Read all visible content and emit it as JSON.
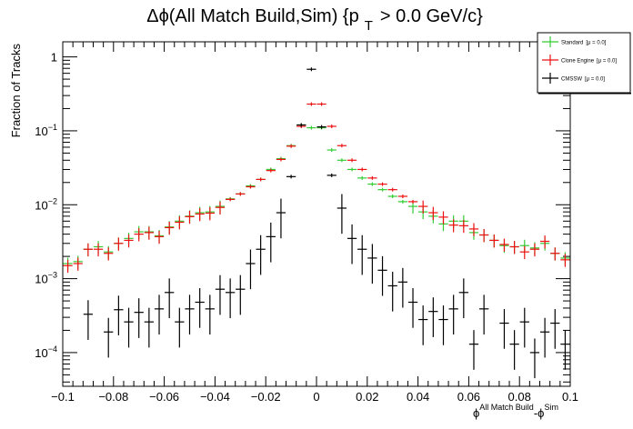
{
  "chart_data": {
    "type": "scatter",
    "title_parts": {
      "main": "Δϕ(All Match Build,Sim) {p",
      "sub": "T",
      "tail": "> 0.0 GeV/c}"
    },
    "ylabel": "Fraction of Tracks",
    "xlabel_parts": {
      "phi_left": "ϕ",
      "sup_left": "All Match Build",
      "dash": "-ϕ",
      "sup_right": "Sim"
    },
    "xlim": [
      -0.1,
      0.1
    ],
    "ylim": [
      3.5e-05,
      1.6
    ],
    "yscale": "log",
    "x_ticks": [
      -0.1,
      -0.08,
      -0.06,
      -0.04,
      -0.02,
      0,
      0.02,
      0.04,
      0.06,
      0.08,
      0.1
    ],
    "x_tick_labels": [
      "−0.1",
      "−0.08",
      "−0.06",
      "−0.04",
      "−0.02",
      "0",
      "0.02",
      "0.04",
      "0.06",
      "0.08",
      "0.1"
    ],
    "y_ticks": [
      {
        "value": 0.0001,
        "base": "10",
        "exp": "−4"
      },
      {
        "value": 0.001,
        "base": "10",
        "exp": "−3"
      },
      {
        "value": 0.01,
        "base": "10",
        "exp": "−2"
      },
      {
        "value": 0.1,
        "base": "10",
        "exp": "−1"
      },
      {
        "value": 1,
        "base": "1",
        "exp": ""
      }
    ],
    "bin_width": 0.004,
    "legend": {
      "position": "top-right",
      "entries": [
        {
          "label": "Standard",
          "stat": "[μ = 0.0]"
        },
        {
          "label": "Clone Engine",
          "stat": "[μ = 0.0]"
        },
        {
          "label": "CMSSW",
          "stat": "[μ = 0.0]"
        }
      ]
    },
    "series": [
      {
        "name": "Standard",
        "color": "#33cc33",
        "x": [
          -0.098,
          -0.094,
          -0.09,
          -0.086,
          -0.082,
          -0.078,
          -0.074,
          -0.07,
          -0.066,
          -0.062,
          -0.058,
          -0.054,
          -0.05,
          -0.046,
          -0.042,
          -0.038,
          -0.034,
          -0.03,
          -0.026,
          -0.022,
          -0.018,
          -0.014,
          -0.01,
          -0.006,
          -0.002,
          0.002,
          0.006,
          0.01,
          0.014,
          0.018,
          0.022,
          0.026,
          0.03,
          0.034,
          0.038,
          0.042,
          0.046,
          0.05,
          0.054,
          0.058,
          0.062,
          0.066,
          0.07,
          0.074,
          0.078,
          0.082,
          0.086,
          0.09,
          0.094,
          0.098
        ],
        "y": [
          0.0016,
          0.0017,
          0.0025,
          0.0027,
          0.0023,
          0.003,
          0.0035,
          0.0043,
          0.0043,
          0.0038,
          0.005,
          0.006,
          0.007,
          0.0078,
          0.008,
          0.0095,
          0.012,
          0.014,
          0.018,
          0.022,
          0.03,
          0.042,
          0.063,
          0.12,
          0.11,
          0.11,
          0.055,
          0.04,
          0.03,
          0.023,
          0.019,
          0.016,
          0.013,
          0.011,
          0.0095,
          0.008,
          0.007,
          0.0055,
          0.006,
          0.006,
          0.0042,
          0.0039,
          0.0033,
          0.0028,
          0.0027,
          0.0028,
          0.0026,
          0.003,
          0.0022,
          0.0019
        ]
      },
      {
        "name": "Clone Engine",
        "color": "#ee1111",
        "x": [
          -0.098,
          -0.094,
          -0.09,
          -0.086,
          -0.082,
          -0.078,
          -0.074,
          -0.07,
          -0.066,
          -0.062,
          -0.058,
          -0.054,
          -0.05,
          -0.046,
          -0.042,
          -0.038,
          -0.034,
          -0.03,
          -0.026,
          -0.022,
          -0.018,
          -0.014,
          -0.01,
          -0.006,
          -0.002,
          0.002,
          0.006,
          0.01,
          0.014,
          0.018,
          0.022,
          0.026,
          0.03,
          0.034,
          0.038,
          0.042,
          0.046,
          0.05,
          0.054,
          0.058,
          0.062,
          0.066,
          0.07,
          0.074,
          0.078,
          0.082,
          0.086,
          0.09,
          0.094,
          0.098
        ],
        "y": [
          0.0015,
          0.0016,
          0.0025,
          0.0025,
          0.0022,
          0.003,
          0.0033,
          0.004,
          0.0042,
          0.0037,
          0.0049,
          0.0058,
          0.0069,
          0.0075,
          0.0077,
          0.0092,
          0.0118,
          0.014,
          0.0175,
          0.022,
          0.029,
          0.041,
          0.062,
          0.115,
          0.23,
          0.23,
          0.115,
          0.063,
          0.04,
          0.03,
          0.023,
          0.019,
          0.016,
          0.013,
          0.011,
          0.0095,
          0.0078,
          0.0068,
          0.0053,
          0.0052,
          0.0047,
          0.0039,
          0.0033,
          0.0029,
          0.0027,
          0.0023,
          0.0025,
          0.0032,
          0.0022,
          0.0018
        ]
      },
      {
        "name": "CMSSW",
        "color": "#000000",
        "x": [
          -0.098,
          -0.094,
          -0.09,
          -0.086,
          -0.082,
          -0.078,
          -0.074,
          -0.07,
          -0.066,
          -0.062,
          -0.058,
          -0.054,
          -0.05,
          -0.046,
          -0.042,
          -0.038,
          -0.034,
          -0.03,
          -0.026,
          -0.022,
          -0.018,
          -0.014,
          -0.01,
          -0.006,
          -0.002,
          0.002,
          0.006,
          0.01,
          0.014,
          0.018,
          0.022,
          0.026,
          0.03,
          0.034,
          0.038,
          0.042,
          0.046,
          0.05,
          0.054,
          0.058,
          0.062,
          0.066,
          0.07,
          0.074,
          0.078,
          0.082,
          0.086,
          0.09,
          0.094,
          0.098
        ],
        "y": [
          null,
          null,
          0.00033,
          null,
          0.00019,
          0.00038,
          0.00026,
          0.00035,
          0.00026,
          0.00039,
          0.00065,
          0.00026,
          0.00039,
          0.00048,
          0.00039,
          0.00072,
          0.00065,
          0.00072,
          0.0016,
          0.0025,
          0.0037,
          0.0078,
          0.024,
          0.12,
          0.68,
          0.113,
          0.025,
          0.009,
          0.0035,
          0.0025,
          0.0019,
          0.0013,
          0.0008,
          0.0009,
          0.00048,
          0.00028,
          0.00036,
          0.00028,
          0.00039,
          0.00065,
          0.00013,
          0.00039,
          null,
          0.00025,
          0.00013,
          0.00026,
          0.0001,
          0.00019,
          0.00025,
          0.00013
        ]
      }
    ]
  }
}
